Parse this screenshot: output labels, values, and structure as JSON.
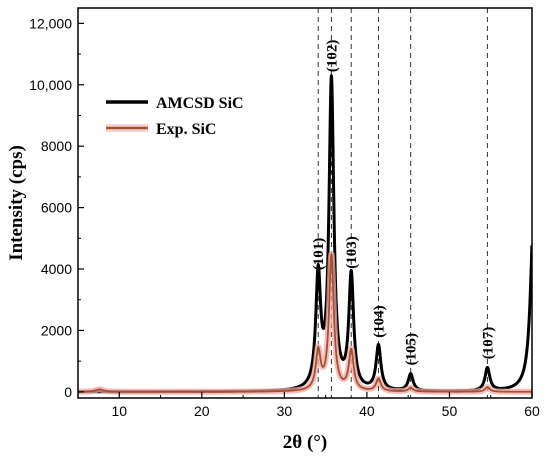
{
  "chart_data": {
    "type": "line",
    "xlabel": "2θ (°)",
    "ylabel": "Intensity (cps)",
    "xlim": [
      5,
      60
    ],
    "ylim": [
      -200,
      12500
    ],
    "xticks": [
      10,
      20,
      30,
      40,
      50,
      60
    ],
    "yticks": [
      0,
      2000,
      4000,
      6000,
      8000,
      10000,
      12000
    ],
    "ytick_labels": [
      "0",
      "2000",
      "4000",
      "6000",
      "8000",
      "10,000",
      "12,000"
    ],
    "grid": false,
    "legend_position": "upper-left",
    "peak_markers": [
      {
        "label": "(101)",
        "x": 34.1
      },
      {
        "label": "(102)",
        "x": 35.7
      },
      {
        "label": "(103)",
        "x": 38.1
      },
      {
        "label": "(104)",
        "x": 41.4
      },
      {
        "label": "(105)",
        "x": 45.3
      },
      {
        "label": "(107)",
        "x": 54.6
      }
    ],
    "series": [
      {
        "name": "AMCSD SiC",
        "color": "#000000",
        "peaks": [
          {
            "x": 34.1,
            "y": 3650
          },
          {
            "x": 35.7,
            "y": 10050
          },
          {
            "x": 38.1,
            "y": 3700
          },
          {
            "x": 41.4,
            "y": 1450
          },
          {
            "x": 45.3,
            "y": 550
          },
          {
            "x": 54.6,
            "y": 750
          },
          {
            "x": 60.2,
            "y": 5800
          }
        ]
      },
      {
        "name": "Exp. SiC",
        "color": "#a0522d",
        "peaks": [
          {
            "x": 7.6,
            "y": 80
          },
          {
            "x": 34.1,
            "y": 1250
          },
          {
            "x": 35.7,
            "y": 4400
          },
          {
            "x": 38.1,
            "y": 1300
          },
          {
            "x": 41.4,
            "y": 400
          },
          {
            "x": 45.3,
            "y": 120
          },
          {
            "x": 54.6,
            "y": 150
          }
        ]
      }
    ]
  }
}
